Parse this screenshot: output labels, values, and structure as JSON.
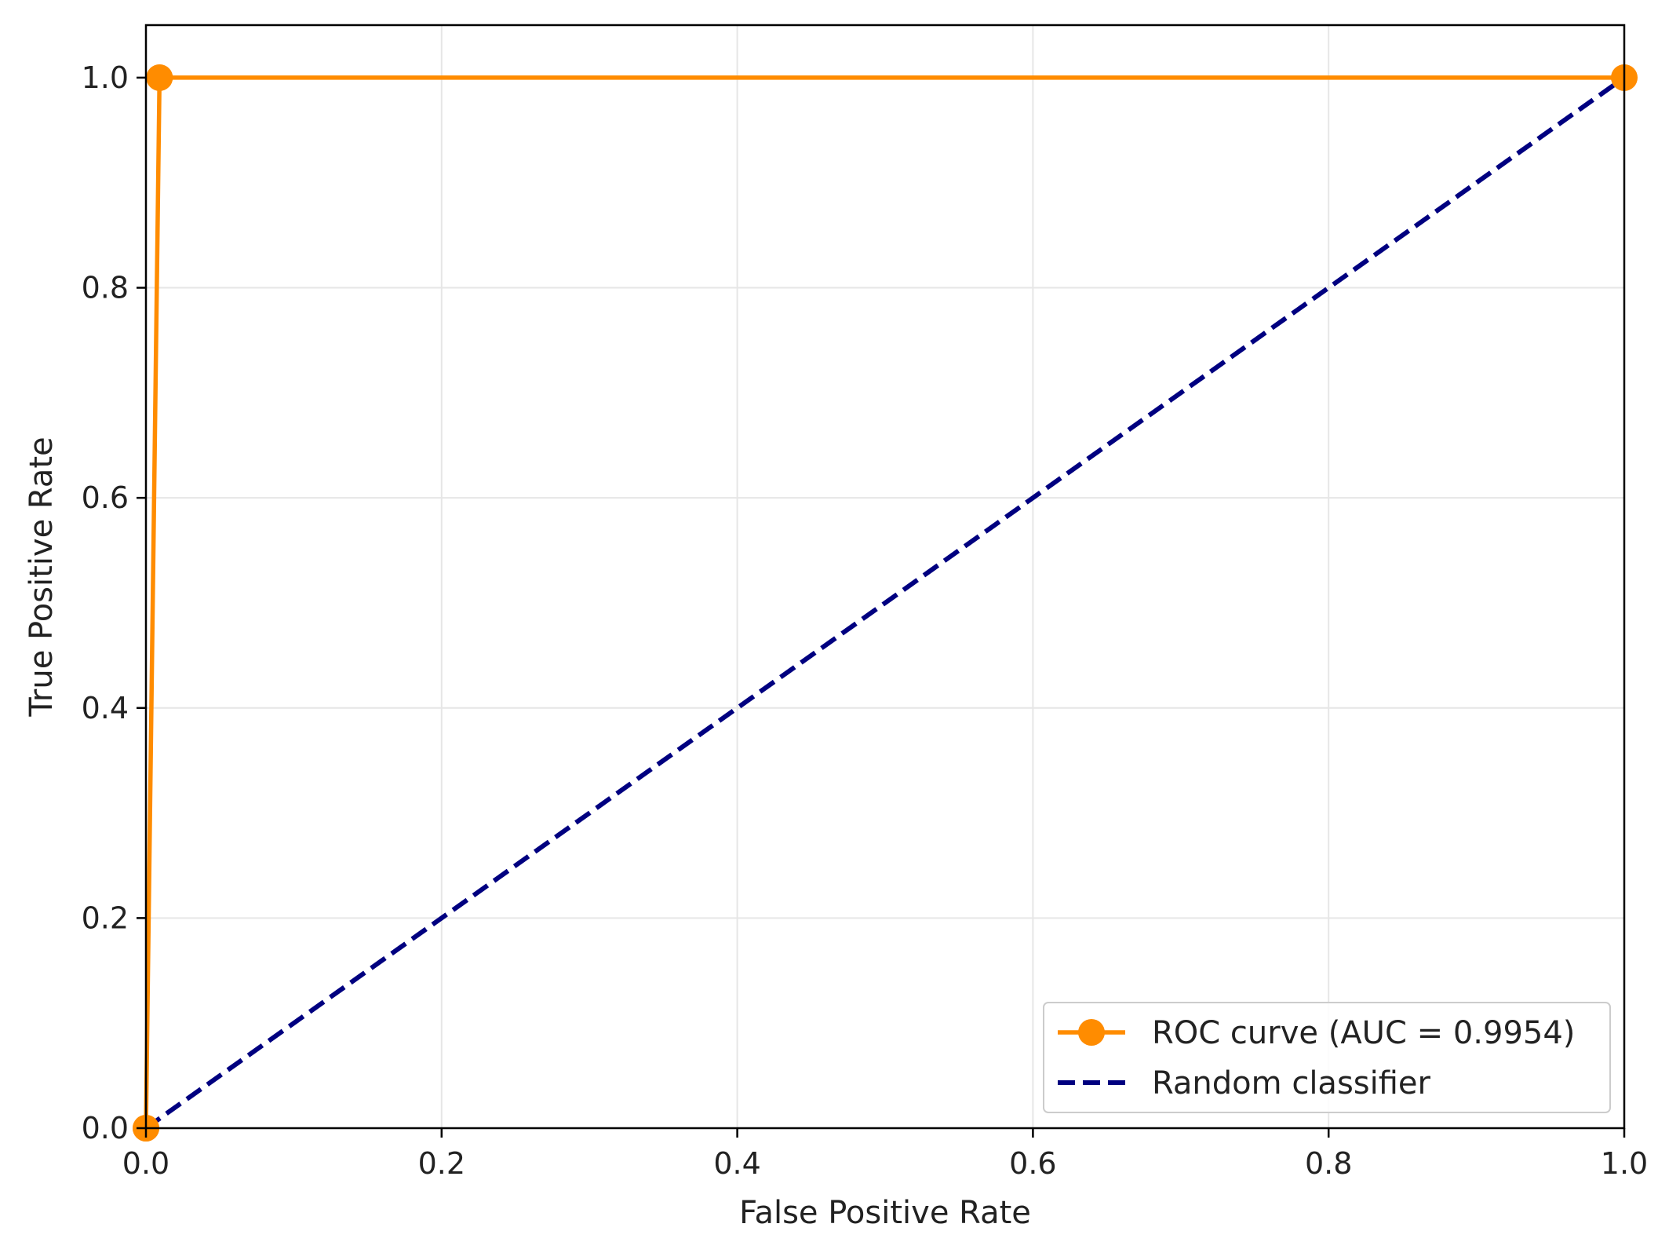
{
  "chart_data": {
    "type": "line",
    "title": "",
    "xlabel": "False Positive Rate",
    "ylabel": "True Positive Rate",
    "xlim": [
      0.0,
      1.0
    ],
    "ylim": [
      0.0,
      1.05
    ],
    "xticks": [
      "0.0",
      "0.2",
      "0.4",
      "0.6",
      "0.8",
      "1.0"
    ],
    "yticks": [
      "0.0",
      "0.2",
      "0.4",
      "0.6",
      "0.8",
      "1.0"
    ],
    "grid": true,
    "legend_position": "lower-right",
    "series": [
      {
        "name": "ROC curve (AUC = 0.9954)",
        "color": "#ff8c00",
        "style": "solid",
        "marker": "circle",
        "x": [
          0.0,
          0.0,
          0.0092,
          1.0
        ],
        "y": [
          0.0,
          0.0,
          1.0,
          1.0
        ]
      },
      {
        "name": "Random classifier",
        "color": "#000080",
        "style": "dashed",
        "marker": "none",
        "x": [
          0.0,
          1.0
        ],
        "y": [
          0.0,
          1.0
        ]
      }
    ]
  }
}
